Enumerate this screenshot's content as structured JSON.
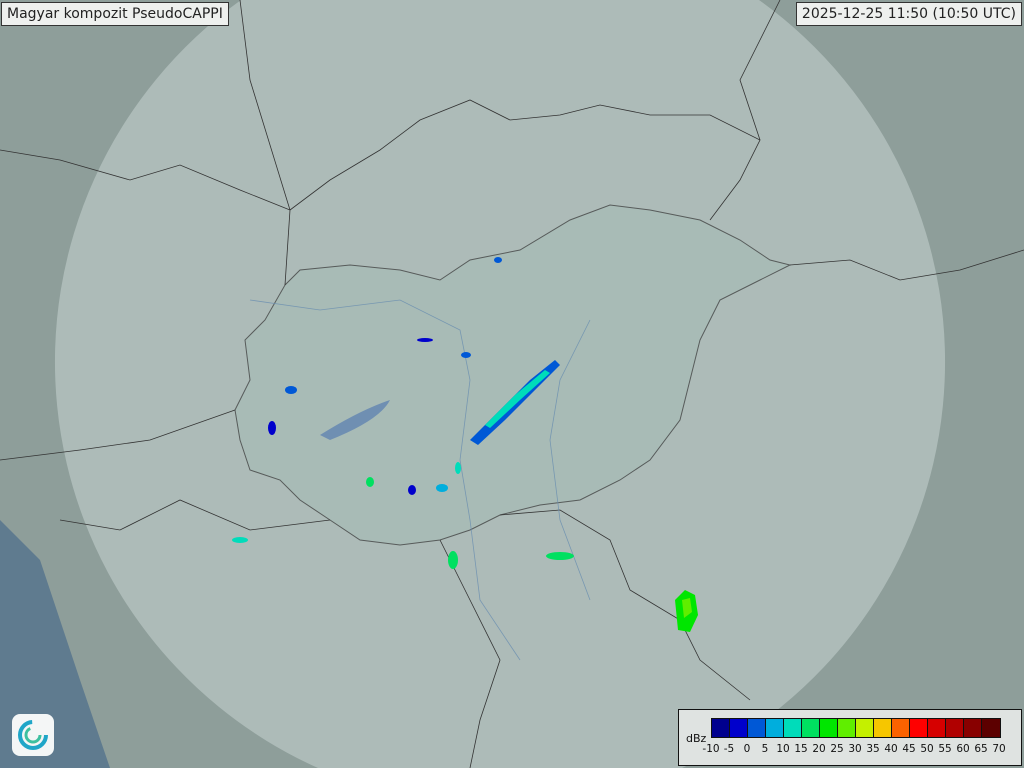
{
  "title": "Magyar kompozit  PseudoCAPPI",
  "timestamp": "2025-12-25 11:50 (10:50 UTC)",
  "legend": {
    "unit": "dBz",
    "ticks": [
      "-10",
      "-5",
      "0",
      "5",
      "10",
      "15",
      "20",
      "25",
      "30",
      "35",
      "40",
      "45",
      "50",
      "55",
      "60",
      "65",
      "70"
    ],
    "colors": [
      "#00008e",
      "#0000cc",
      "#0058d6",
      "#00aedd",
      "#00dcba",
      "#00e060",
      "#00e600",
      "#60ee00",
      "#c4f000",
      "#f6c600",
      "#fb6200",
      "#ff0000",
      "#d60000",
      "#b00000",
      "#880000",
      "#5c0000"
    ]
  },
  "logo_icon": "met-service-swirl-icon",
  "colors": {
    "background": "#8e9e9a",
    "radar_coverage": "#c4d2cf",
    "hungary": "#a8bcb8"
  }
}
